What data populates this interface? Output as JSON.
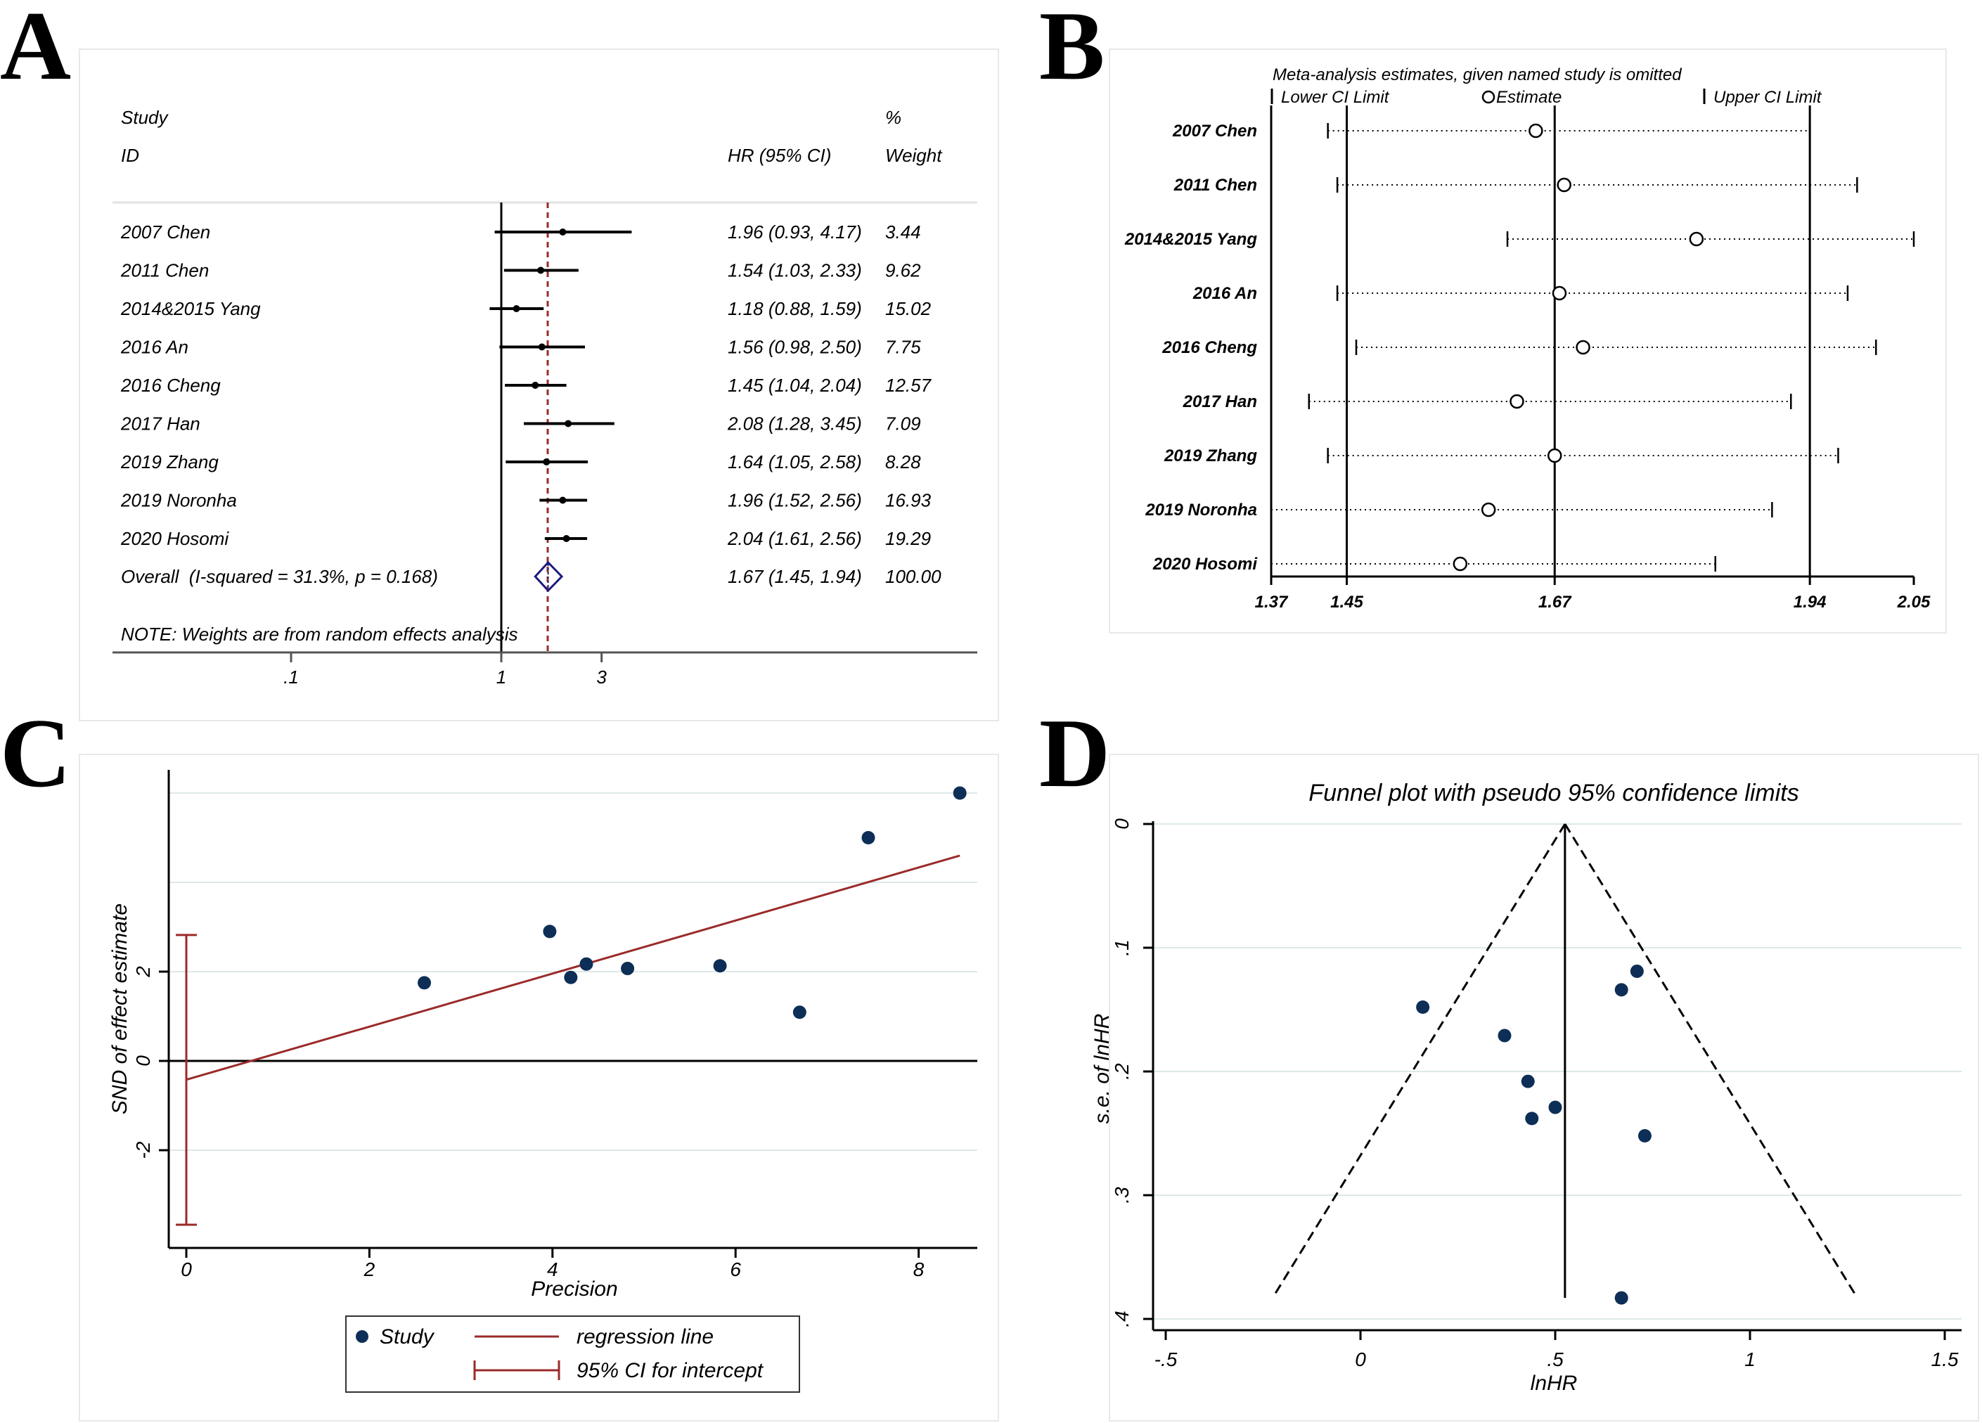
{
  "panels": {
    "a": "A",
    "b": "B",
    "c": "C",
    "d": "D"
  },
  "chart_data": [
    {
      "type": "forest",
      "panel": "A",
      "headers": {
        "study_top": "Study",
        "study_bottom": "ID",
        "hr": "HR (95% CI)",
        "weight_top": "%",
        "weight_bottom": "Weight"
      },
      "studies": [
        {
          "label": "2007 Chen",
          "hr": 1.96,
          "lo": 0.93,
          "hi": 4.17,
          "hr_text": "1.96 (0.93, 4.17)",
          "weight": "3.44"
        },
        {
          "label": "2011 Chen",
          "hr": 1.54,
          "lo": 1.03,
          "hi": 2.33,
          "hr_text": "1.54 (1.03, 2.33)",
          "weight": "9.62"
        },
        {
          "label": "2014&2015 Yang",
          "hr": 1.18,
          "lo": 0.88,
          "hi": 1.59,
          "hr_text": "1.18 (0.88, 1.59)",
          "weight": "15.02"
        },
        {
          "label": "2016 An",
          "hr": 1.56,
          "lo": 0.98,
          "hi": 2.5,
          "hr_text": "1.56 (0.98, 2.50)",
          "weight": "7.75"
        },
        {
          "label": "2016 Cheng",
          "hr": 1.45,
          "lo": 1.04,
          "hi": 2.04,
          "hr_text": "1.45 (1.04, 2.04)",
          "weight": "12.57"
        },
        {
          "label": "2017 Han",
          "hr": 2.08,
          "lo": 1.28,
          "hi": 3.45,
          "hr_text": "2.08 (1.28, 3.45)",
          "weight": "7.09"
        },
        {
          "label": "2019 Zhang",
          "hr": 1.64,
          "lo": 1.05,
          "hi": 2.58,
          "hr_text": "1.64 (1.05, 2.58)",
          "weight": "8.28"
        },
        {
          "label": "2019 Noronha",
          "hr": 1.96,
          "lo": 1.52,
          "hi": 2.56,
          "hr_text": "1.96 (1.52, 2.56)",
          "weight": "16.93"
        },
        {
          "label": "2020 Hosomi",
          "hr": 2.04,
          "lo": 1.61,
          "hi": 2.56,
          "hr_text": "2.04 (1.61, 2.56)",
          "weight": "19.29"
        }
      ],
      "overall": {
        "label": "Overall  (I-squared = 31.3%, p = 0.168)",
        "hr": 1.67,
        "lo": 1.45,
        "hi": 1.94,
        "hr_text": "1.67 (1.45, 1.94)",
        "weight": "100.00"
      },
      "note": "NOTE: Weights are from random effects analysis",
      "x_scale": "log",
      "x_ticks": [
        {
          "value": 0.1,
          "label": ".1"
        },
        {
          "value": 1,
          "label": "1"
        },
        {
          "value": 3,
          "label": "3"
        }
      ]
    },
    {
      "type": "influence",
      "panel": "B",
      "title": "Meta-analysis estimates, given named study is omitted",
      "legend": {
        "lower": "Lower CI Limit",
        "estimate": "Estimate",
        "upper": "Upper CI Limit"
      },
      "studies": [
        {
          "label": "2007 Chen",
          "estimate": 1.65,
          "lower": 1.43,
          "upper": 1.94
        },
        {
          "label": "2011 Chen",
          "estimate": 1.68,
          "lower": 1.44,
          "upper": 1.99
        },
        {
          "label": "2014&2015 Yang",
          "estimate": 1.82,
          "lower": 1.62,
          "upper": 2.05
        },
        {
          "label": "2016 An",
          "estimate": 1.675,
          "lower": 1.44,
          "upper": 1.98
        },
        {
          "label": "2016 Cheng",
          "estimate": 1.7,
          "lower": 1.46,
          "upper": 2.01
        },
        {
          "label": "2017 Han",
          "estimate": 1.63,
          "lower": 1.41,
          "upper": 1.92
        },
        {
          "label": "2019 Zhang",
          "estimate": 1.67,
          "lower": 1.43,
          "upper": 1.97
        },
        {
          "label": "2019 Noronha",
          "estimate": 1.6,
          "lower": 1.37,
          "upper": 1.9
        },
        {
          "label": "2020 Hosomi",
          "estimate": 1.57,
          "lower": 1.37,
          "upper": 1.84
        }
      ],
      "reference_lines": [
        1.45,
        1.67,
        1.94
      ],
      "x_range": [
        1.37,
        2.05
      ],
      "x_ticks": [
        {
          "value": 1.37,
          "label": "1.37"
        },
        {
          "value": 1.45,
          "label": "1.45"
        },
        {
          "value": 1.67,
          "label": "1.67"
        },
        {
          "value": 1.94,
          "label": "1.94"
        },
        {
          "value": 2.05,
          "label": "2.05"
        }
      ]
    },
    {
      "type": "scatter",
      "panel": "C",
      "xlabel": "Precision",
      "ylabel": "SND of effect estimate",
      "xlim": [
        -0.2,
        8.6
      ],
      "ylim": [
        -4.0,
        6.3
      ],
      "x_ticks": [
        0,
        2,
        4,
        6,
        8
      ],
      "y_ticks": [
        -2,
        0,
        2
      ],
      "grid": true,
      "points": [
        {
          "x": 2.6,
          "y": 1.75
        },
        {
          "x": 3.97,
          "y": 2.9
        },
        {
          "x": 4.2,
          "y": 1.87
        },
        {
          "x": 4.37,
          "y": 2.17
        },
        {
          "x": 4.82,
          "y": 2.07
        },
        {
          "x": 5.83,
          "y": 2.13
        },
        {
          "x": 6.7,
          "y": 1.09
        },
        {
          "x": 7.45,
          "y": 5.0
        },
        {
          "x": 8.45,
          "y": 6.0
        }
      ],
      "regression_line": {
        "x": [
          0,
          8.45
        ],
        "y": [
          -0.42,
          4.6
        ]
      },
      "ci_intercept": {
        "x": 0,
        "lo": -3.67,
        "hi": 2.82
      },
      "legend": {
        "study": "Study",
        "regression": "regression line",
        "ci": "95% CI for intercept"
      }
    },
    {
      "type": "funnel",
      "panel": "D",
      "title": "Funnel plot with pseudo 95% confidence limits",
      "xlabel": "lnHR",
      "ylabel": "s.e. of lnHR",
      "xlim": [
        -0.5,
        1.5
      ],
      "ylim": [
        0,
        0.4
      ],
      "y_inverted": true,
      "x_ticks": [
        {
          "value": -0.5,
          "label": "-.5"
        },
        {
          "value": 0,
          "label": "0"
        },
        {
          "value": 0.5,
          "label": ".5"
        },
        {
          "value": 1,
          "label": "1"
        },
        {
          "value": 1.5,
          "label": "1.5"
        }
      ],
      "y_ticks": [
        {
          "value": 0,
          "label": "0"
        },
        {
          "value": 0.1,
          "label": ".1"
        },
        {
          "value": 0.2,
          "label": ".2"
        },
        {
          "value": 0.3,
          "label": ".3"
        },
        {
          "value": 0.4,
          "label": ".4"
        }
      ],
      "grid": true,
      "pooled_lnhr": 0.525,
      "funnel_se_max": 0.383,
      "points": [
        {
          "x": 0.16,
          "y": 0.148
        },
        {
          "x": 0.37,
          "y": 0.171
        },
        {
          "x": 0.43,
          "y": 0.208
        },
        {
          "x": 0.44,
          "y": 0.238
        },
        {
          "x": 0.5,
          "y": 0.229
        },
        {
          "x": 0.67,
          "y": 0.134
        },
        {
          "x": 0.71,
          "y": 0.119
        },
        {
          "x": 0.73,
          "y": 0.252
        },
        {
          "x": 0.67,
          "y": 0.383
        }
      ]
    }
  ]
}
